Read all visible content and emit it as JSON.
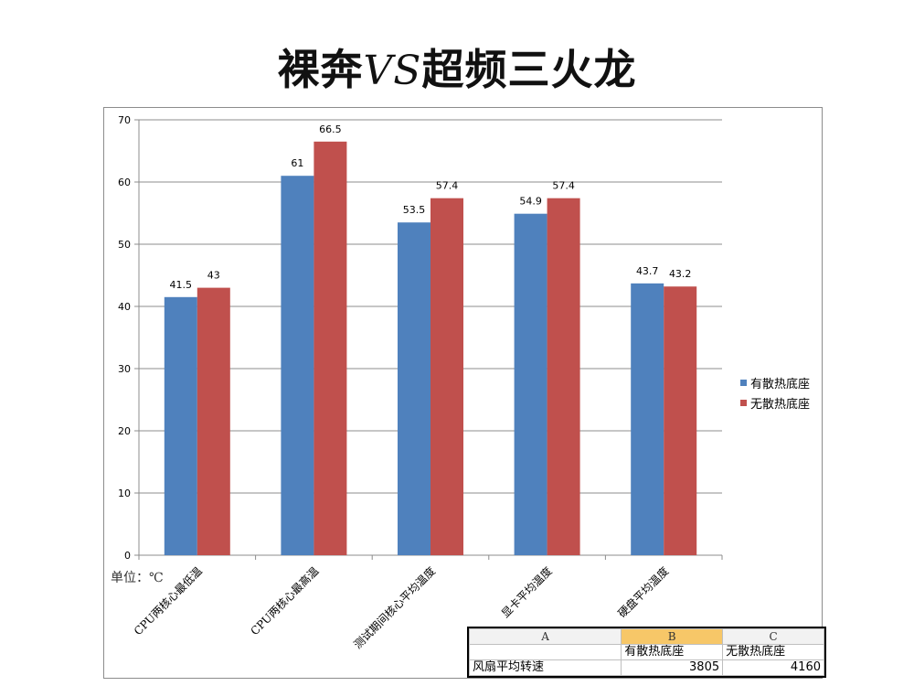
{
  "page": {
    "title_a": "裸奔",
    "title_vs": "VS",
    "title_b": "超频三火龙",
    "unit_label": "单位：℃"
  },
  "chart_data": {
    "type": "bar",
    "title": "裸奔VS超频三火龙",
    "ylim": [
      0,
      70
    ],
    "yticks": [
      0,
      10,
      20,
      30,
      40,
      50,
      60,
      70
    ],
    "grid": true,
    "legend_position": "right",
    "categories": [
      "CPU两核心最低温",
      "CPU两核心最高温",
      "测试期间核心平均温度",
      "显卡平均温度",
      "硬盘平均温度"
    ],
    "series": [
      {
        "name": "有散热底座",
        "color": "#4f81bd",
        "values": [
          41.5,
          61,
          53.5,
          54.9,
          43.7
        ]
      },
      {
        "name": "无散热底座",
        "color": "#c0504d",
        "values": [
          43,
          66.5,
          57.4,
          57.4,
          43.2
        ]
      }
    ]
  },
  "sheet": {
    "col_headers": [
      "A",
      "B",
      "C"
    ],
    "header_row": [
      "",
      "有散热底座",
      "无散热底座"
    ],
    "data_row": [
      "风扇平均转速",
      "3805",
      "4160"
    ]
  }
}
